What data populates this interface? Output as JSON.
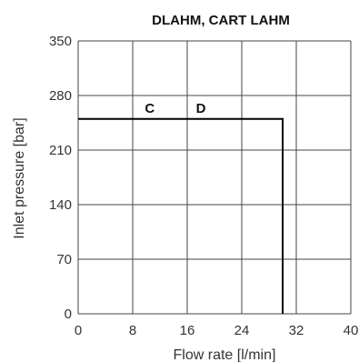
{
  "chart_data": {
    "type": "line",
    "title": "DLAHM, CART LAHM",
    "xlabel": "Flow rate [l/min]",
    "ylabel": "Inlet pressure [bar]",
    "xlim": [
      0,
      40
    ],
    "ylim": [
      0,
      350
    ],
    "x_ticks": [
      "0",
      "8",
      "16",
      "24",
      "32",
      "40"
    ],
    "y_ticks": [
      "0",
      "70",
      "140",
      "210",
      "280",
      "350"
    ],
    "grid": true,
    "series": [
      {
        "x": [
          0,
          30,
          30
        ],
        "y": [
          250,
          250,
          0
        ]
      }
    ],
    "annotations": [
      {
        "text": "C",
        "x": 10.5,
        "y": 258
      },
      {
        "text": "D",
        "x": 18.0,
        "y": 258
      }
    ],
    "colors": {
      "grid": "#444444",
      "line": "#000000"
    }
  }
}
